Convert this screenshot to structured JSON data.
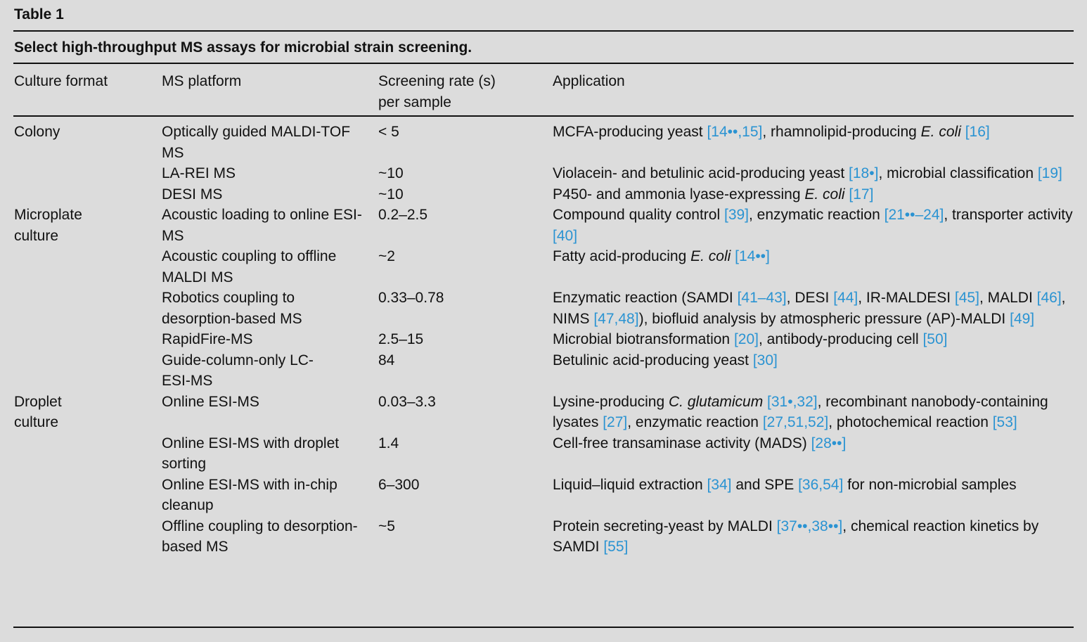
{
  "table_label": "Table 1",
  "caption": "Select high-throughput MS assays for microbial strain screening.",
  "headers": [
    "Culture format",
    "MS platform",
    "Screening rate (s) per sample",
    "Application"
  ],
  "colors": {
    "citation": "#2a93d2",
    "background": "#dcdcdc"
  },
  "rows": [
    {
      "format": "Colony",
      "platform": "Optically guided MALDI-TOF MS",
      "rate": "< 5",
      "application": [
        {
          "t": "MCFA-producing yeast "
        },
        {
          "t": "[14••,15]",
          "c": 1
        },
        {
          "t": ", rhamnolipid-producing "
        },
        {
          "t": "E. coli",
          "i": 1
        },
        {
          "t": " "
        },
        {
          "t": "[16]",
          "c": 1
        }
      ]
    },
    {
      "format": "",
      "platform": "LA-REI MS",
      "rate": "~10",
      "application": [
        {
          "t": "Violacein- and betulinic acid-producing yeast "
        },
        {
          "t": "[18•]",
          "c": 1
        },
        {
          "t": ", microbial classification "
        },
        {
          "t": "[19]",
          "c": 1
        }
      ]
    },
    {
      "format": "",
      "platform": "DESI MS",
      "rate": "~10",
      "application": [
        {
          "t": "P450- and ammonia lyase-expressing "
        },
        {
          "t": "E. coli",
          "i": 1
        },
        {
          "t": " "
        },
        {
          "t": "[17]",
          "c": 1
        }
      ]
    },
    {
      "format": "Microplate culture",
      "platform": "Acoustic loading to online ESI-MS",
      "rate": "0.2–2.5",
      "application": [
        {
          "t": "Compound quality control "
        },
        {
          "t": "[39]",
          "c": 1
        },
        {
          "t": ", enzymatic reaction "
        },
        {
          "t": "[21••–24]",
          "c": 1
        },
        {
          "t": ", transporter activity "
        },
        {
          "t": "[40]",
          "c": 1
        }
      ]
    },
    {
      "format": "",
      "platform": "Acoustic coupling to offline MALDI MS",
      "rate": "~2",
      "application": [
        {
          "t": "Fatty acid-producing "
        },
        {
          "t": "E. coli",
          "i": 1
        },
        {
          "t": " "
        },
        {
          "t": "[14••]",
          "c": 1
        }
      ]
    },
    {
      "format": "",
      "platform": "Robotics coupling to desorption-based MS",
      "rate": "0.33–0.78",
      "application": [
        {
          "t": "Enzymatic reaction (SAMDI "
        },
        {
          "t": "[41–43]",
          "c": 1
        },
        {
          "t": ", DESI "
        },
        {
          "t": "[44]",
          "c": 1
        },
        {
          "t": ", IR-MALDESI "
        },
        {
          "t": "[45]",
          "c": 1
        },
        {
          "t": ", MALDI "
        },
        {
          "t": "[46]",
          "c": 1
        },
        {
          "t": ", NIMS "
        },
        {
          "t": "[47,48]",
          "c": 1
        },
        {
          "t": "), biofluid analysis by atmospheric pressure (AP)-MALDI "
        },
        {
          "t": "[49]",
          "c": 1
        }
      ]
    },
    {
      "format": "",
      "platform": "RapidFire-MS",
      "rate": "2.5–15",
      "application": [
        {
          "t": "Microbial biotransformation "
        },
        {
          "t": "[20]",
          "c": 1
        },
        {
          "t": ", antibody-producing cell "
        },
        {
          "t": "[50]",
          "c": 1
        }
      ]
    },
    {
      "format": "",
      "platform": "Guide-column-only LC-ESI-MS",
      "rate": "84",
      "application": [
        {
          "t": "Betulinic acid-producing yeast "
        },
        {
          "t": "[30]",
          "c": 1
        }
      ]
    },
    {
      "format": "Droplet culture",
      "platform": "Online ESI-MS",
      "rate": "0.03–3.3",
      "application": [
        {
          "t": "Lysine-producing "
        },
        {
          "t": "C. glutamicum",
          "i": 1
        },
        {
          "t": " "
        },
        {
          "t": "[31•,32]",
          "c": 1
        },
        {
          "t": ", recombinant nanobody-containing lysates "
        },
        {
          "t": "[27]",
          "c": 1
        },
        {
          "t": ", enzymatic reaction "
        },
        {
          "t": "[27,51,52]",
          "c": 1
        },
        {
          "t": ", photochemical reaction "
        },
        {
          "t": "[53]",
          "c": 1
        }
      ]
    },
    {
      "format": "",
      "platform": "Online ESI-MS with droplet sorting",
      "rate": "1.4",
      "application": [
        {
          "t": "Cell-free transaminase activity (MADS) "
        },
        {
          "t": "[28••]",
          "c": 1
        }
      ]
    },
    {
      "format": "",
      "platform": "Online ESI-MS with in-chip cleanup",
      "rate": "6–300",
      "application": [
        {
          "t": "Liquid–liquid extraction "
        },
        {
          "t": "[34]",
          "c": 1
        },
        {
          "t": " and SPE "
        },
        {
          "t": "[36,54]",
          "c": 1
        },
        {
          "t": " for non-microbial samples"
        }
      ]
    },
    {
      "format": "",
      "platform": "Offline coupling to desorption-based MS",
      "rate": "~5",
      "application": [
        {
          "t": "Protein secreting-yeast by MALDI "
        },
        {
          "t": "[37••,38••]",
          "c": 1
        },
        {
          "t": ", chemical reaction kinetics by SAMDI "
        },
        {
          "t": "[55]",
          "c": 1
        }
      ]
    }
  ]
}
